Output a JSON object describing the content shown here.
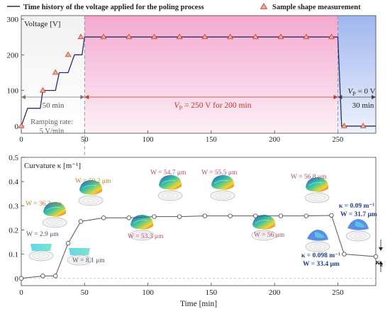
{
  "legend": {
    "voltage_label": "Time history of the voltage applied for the poling process",
    "marker_label": "Sample shape measurement",
    "line_color": "#2b2b6b",
    "marker_color": "#e07b5a"
  },
  "chart_data": [
    {
      "type": "line",
      "ylabel": "Voltage [V]",
      "xlim": [
        0,
        280
      ],
      "ylim": [
        -20,
        310
      ],
      "yticks": [
        0,
        100,
        200,
        300
      ],
      "xticks": [
        0,
        50,
        100,
        150,
        200,
        250
      ],
      "voltage_series": {
        "x": [
          0,
          5,
          10,
          15,
          17,
          22,
          27,
          30,
          32,
          37,
          42,
          45,
          48,
          50,
          250,
          253,
          255,
          280
        ],
        "y": [
          0,
          50,
          50,
          50,
          100,
          100,
          100,
          150,
          150,
          150,
          200,
          200,
          200,
          250,
          250,
          0,
          0,
          0
        ]
      },
      "measurement_points": {
        "x": [
          0,
          17,
          27,
          37,
          47,
          65,
          85,
          105,
          125,
          145,
          165,
          185,
          205,
          225,
          245,
          255,
          270
        ],
        "y": [
          0,
          100,
          150,
          200,
          250,
          250,
          250,
          250,
          250,
          250,
          250,
          250,
          250,
          250,
          250,
          0,
          0
        ]
      },
      "phases": [
        {
          "label": "50 min",
          "note": "Ramping rate:",
          "rate": "5 V/min",
          "x": [
            0,
            50
          ],
          "color": "#eeeeee"
        },
        {
          "label": "V_P = 250 V for 200 min",
          "x": [
            50,
            250
          ],
          "color": "#f7c6dd"
        },
        {
          "label": "V_P = 0 V",
          "sub": "30 min",
          "x": [
            250,
            280
          ],
          "color": "#c9d6f5"
        }
      ],
      "phase_text": {
        "vp_on": "V",
        "vp_on_sub": "P",
        "vp_on_rest": " = 250 V for 200 min",
        "vp_off": "V",
        "vp_off_sub": "P",
        "vp_off_rest": " = 0 V",
        "off_duration": "30 min",
        "ramp_duration": "50 min",
        "ramp_note": "Ramping rate:",
        "ramp_rate": "5 V/min"
      }
    },
    {
      "type": "line",
      "ylabel": "Curvature κ [m⁻¹]",
      "xlabel": "Time [min]",
      "xlim": [
        0,
        280
      ],
      "ylim": [
        -0.03,
        0.5
      ],
      "yticks": [
        0,
        0.1,
        0.2,
        0.3,
        0.4,
        0.5
      ],
      "xticks": [
        0,
        50,
        100,
        150,
        200,
        250
      ],
      "x": [
        0,
        17,
        27,
        37,
        47,
        65,
        85,
        105,
        125,
        145,
        165,
        185,
        205,
        225,
        245,
        255,
        280
      ],
      "y": [
        0.0,
        0.01,
        0.01,
        0.145,
        0.235,
        0.25,
        0.25,
        0.255,
        0.255,
        0.258,
        0.258,
        0.258,
        0.258,
        0.258,
        0.26,
        0.1,
        0.09
      ],
      "annotations": [
        {
          "text": "W = 2.9 μm",
          "color": "#555555"
        },
        {
          "text": "W = 8.1 μm",
          "color": "#555555"
        },
        {
          "text": "W = 36.3 μm",
          "color": "#c97a1e"
        },
        {
          "text": "W = 50.2 μm",
          "color": "#c97a1e"
        },
        {
          "text": "W = 53.3 μm",
          "color": "#b84a6e"
        },
        {
          "text": "W = 54.7 μm",
          "color": "#b84a6e"
        },
        {
          "text": "W = 55.5 μm",
          "color": "#b84a6e"
        },
        {
          "text": "W = 56 μm",
          "color": "#b84a6e"
        },
        {
          "text": "W = 56.8 μm",
          "color": "#b84a6e"
        },
        {
          "text": "κ = 0.098 m⁻¹",
          "color": "#1f3f8f"
        },
        {
          "text": "W = 33.4 μm",
          "color": "#1f3f8f"
        },
        {
          "text": "κ = 0.09 m⁻¹",
          "color": "#1f3f8f"
        },
        {
          "text": "W = 31.7 μm",
          "color": "#1f3f8f"
        }
      ],
      "kr_label": "κ",
      "kr_sub": "R"
    }
  ]
}
